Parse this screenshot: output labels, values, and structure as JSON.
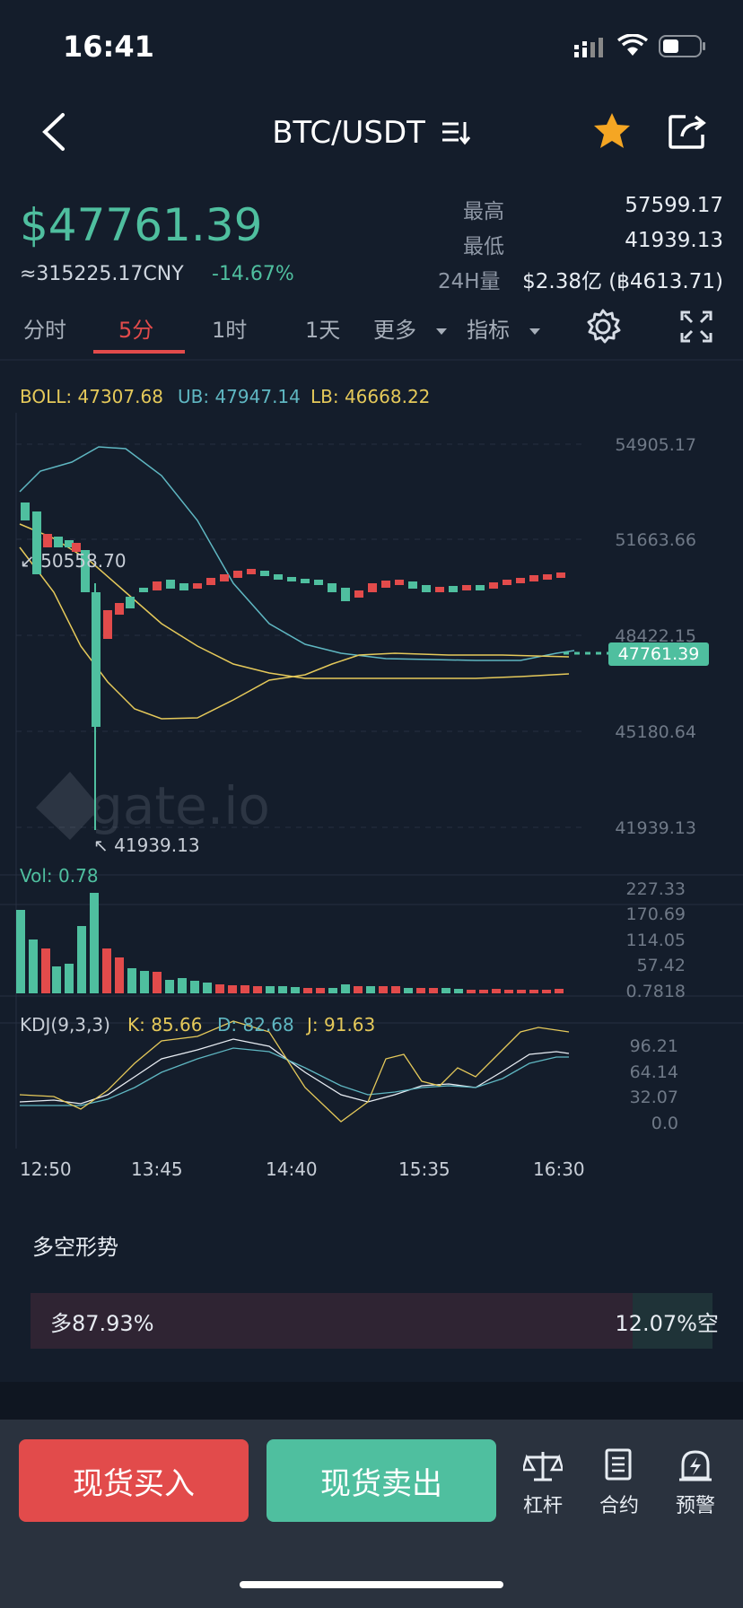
{
  "status": {
    "time": "16:41"
  },
  "header": {
    "pair": "BTC/USDT",
    "pair_icon": "sort-icon"
  },
  "ticker": {
    "price": "$47761.39",
    "cny": "≈315225.17CNY",
    "change": "-14.67%",
    "high_label": "最高",
    "high_value": "57599.17",
    "low_label": "最低",
    "low_value": "41939.13",
    "vol_label": "24H量",
    "vol_value": "$2.38亿 (฿4613.71)"
  },
  "tabs": [
    "分时",
    "5分",
    "1时",
    "1天",
    "更多",
    "指标"
  ],
  "active_tab": "5分",
  "indicators": {
    "boll": "BOLL: 47307.68",
    "ub": "UB: 47947.14",
    "lb": "LB: 46668.22",
    "vol": "Vol: 0.78",
    "kdj": "KDJ(9,3,3)",
    "k": "K: 85.66",
    "d": "D: 82.68",
    "j": "J: 91.63"
  },
  "price_axis": [
    "54905.17",
    "51663.66",
    "48422.15",
    "45180.64",
    "41939.13"
  ],
  "vol_axis": [
    "227.33",
    "170.69",
    "114.05",
    "57.42",
    "0.7818"
  ],
  "kdj_axis": [
    "96.21",
    "64.14",
    "32.07",
    "0.0"
  ],
  "time_axis": [
    "12:50",
    "13:45",
    "14:40",
    "15:35",
    "16:30"
  ],
  "annotations": {
    "max": "50558.70",
    "min": "41939.13",
    "current": "47761.39"
  },
  "watermark": "gate.io",
  "sentiment": {
    "title": "多空形势",
    "long": "多87.93%",
    "short": "12.07%空"
  },
  "buttons": {
    "buy": "现货买入",
    "sell": "现货卖出",
    "leverage": "杠杆",
    "contract": "合约",
    "alert": "预警"
  },
  "colors": {
    "up": "#4fbf9f",
    "down": "#e24b4b",
    "boll_upper": "#5fb7c2",
    "boll_mid": "#e5c95a",
    "accent_star": "#f5a623"
  }
}
